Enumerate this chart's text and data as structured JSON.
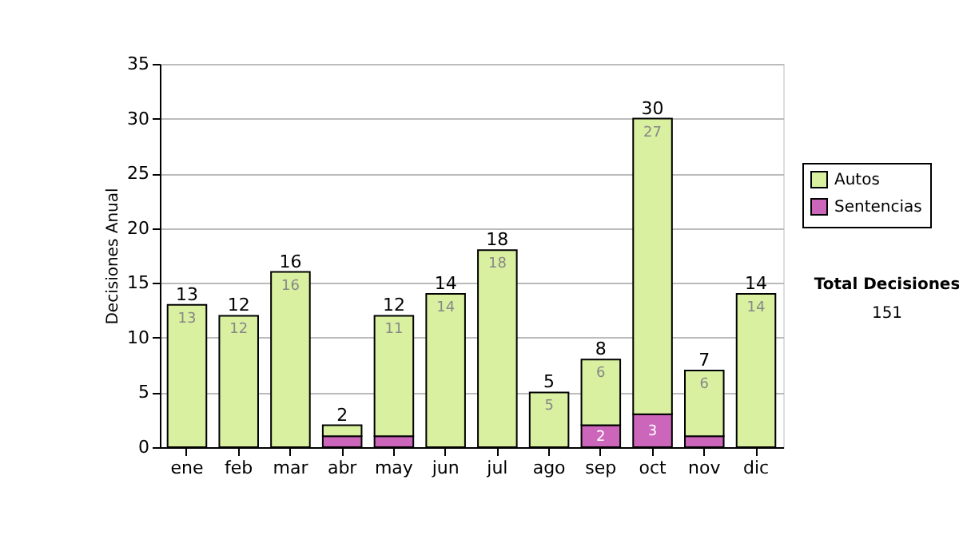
{
  "chart_data": {
    "type": "bar",
    "stacked": true,
    "ylabel": "Decisiones Anual",
    "categories": [
      "ene",
      "feb",
      "mar",
      "abr",
      "may",
      "jun",
      "jul",
      "ago",
      "sep",
      "oct",
      "nov",
      "dic"
    ],
    "series": [
      {
        "name": "Sentencias",
        "color": "#cc66bb",
        "values": [
          0,
          0,
          0,
          1,
          1,
          0,
          0,
          0,
          2,
          3,
          1,
          0
        ],
        "value_labels": [
          null,
          null,
          null,
          null,
          null,
          null,
          null,
          null,
          "2",
          "3",
          null,
          null
        ]
      },
      {
        "name": "Autos",
        "color": "#d8f0a0",
        "values": [
          13,
          12,
          16,
          1,
          11,
          14,
          18,
          5,
          6,
          27,
          6,
          14
        ],
        "value_labels": [
          "13",
          "12",
          "16",
          null,
          "11",
          "14",
          "18",
          "5",
          "6",
          "27",
          "6",
          "14"
        ]
      }
    ],
    "totals": [
      "13",
      "12",
      "16",
      "2",
      "12",
      "14",
      "18",
      "5",
      "8",
      "30",
      "7",
      "14"
    ],
    "ylim": [
      0,
      35
    ],
    "yticks": [
      0,
      5,
      10,
      15,
      20,
      25,
      30,
      35
    ],
    "grid": "y",
    "legend": "top right",
    "annotations": [
      "Total Decisiones",
      "151"
    ]
  }
}
